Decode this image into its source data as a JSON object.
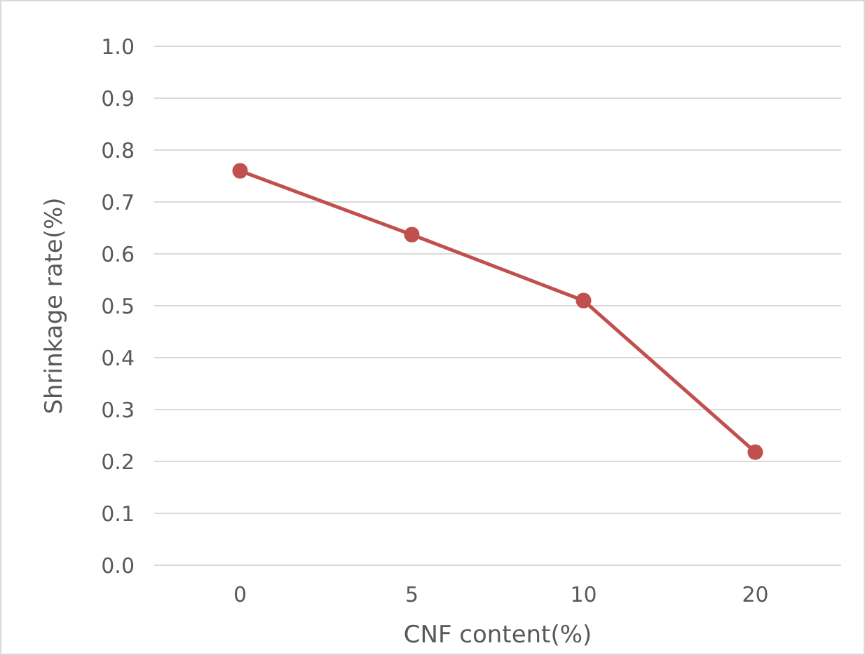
{
  "chart_data": {
    "type": "line",
    "xlabel": "CNF content(%)",
    "ylabel": "Shrinkage rate(%)",
    "categories": [
      "0",
      "5",
      "10",
      "20"
    ],
    "series": [
      {
        "color": "#c0504d",
        "values": [
          0.76,
          0.637,
          0.51,
          0.218
        ]
      }
    ],
    "ylim": [
      0,
      1
    ],
    "yticks": [
      {
        "value": 0,
        "label": "0.0"
      },
      {
        "value": 0.1,
        "label": "0.1"
      },
      {
        "value": 0.2,
        "label": "0.2"
      },
      {
        "value": 0.3,
        "label": "0.3"
      },
      {
        "value": 0.4,
        "label": "0.4"
      },
      {
        "value": 0.5,
        "label": "0.5"
      },
      {
        "value": 0.6,
        "label": "0.6"
      },
      {
        "value": 0.7,
        "label": "0.7"
      },
      {
        "value": 0.8,
        "label": "0.8"
      },
      {
        "value": 0.9,
        "label": "0.9"
      },
      {
        "value": 1,
        "label": "1.0"
      }
    ],
    "grid": "y",
    "marker": "circle",
    "line_style": "solid"
  }
}
